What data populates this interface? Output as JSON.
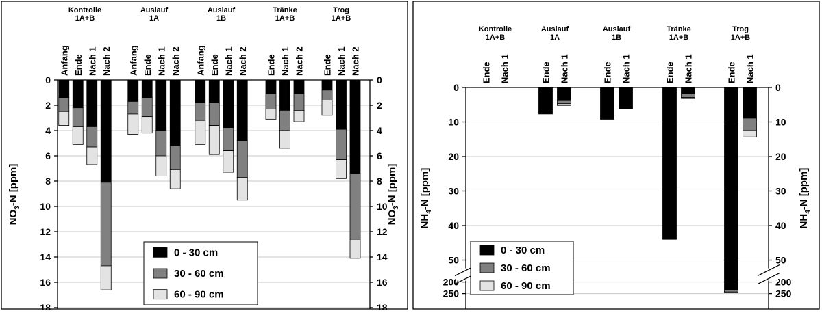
{
  "chart_data": [
    {
      "type": "bar",
      "stacked": true,
      "ylabel": "NO3-N [ppm]",
      "ylabel_parts": {
        "main": "NO",
        "sub": "3",
        "rest": "-N [ppm]"
      },
      "ylim": [
        0,
        18
      ],
      "yticks": [
        0,
        2,
        4,
        6,
        8,
        10,
        12,
        14,
        16,
        18
      ],
      "y_inverted": true,
      "grid": true,
      "legend_position": "bottom-center",
      "groups": [
        {
          "line1": "Kontrolle",
          "line2": "1A+B",
          "bars": [
            {
              "label": "Anfang",
              "values": [
                1.4,
                1.1,
                1.1
              ]
            },
            {
              "label": "Ende",
              "values": [
                2.2,
                1.5,
                1.4
              ]
            },
            {
              "label": "Nach 1",
              "values": [
                3.7,
                1.6,
                1.4
              ]
            },
            {
              "label": "Nach 2",
              "values": [
                8.1,
                6.6,
                1.9
              ]
            }
          ]
        },
        {
          "line1": "Auslauf",
          "line2": "1A",
          "bars": [
            {
              "label": "Anfang",
              "values": [
                1.7,
                1.0,
                1.6
              ]
            },
            {
              "label": "Ende",
              "values": [
                1.4,
                1.5,
                1.3
              ]
            },
            {
              "label": "Nach 1",
              "values": [
                4.0,
                2.0,
                1.6
              ]
            },
            {
              "label": "Nach 2",
              "values": [
                5.2,
                1.9,
                1.5
              ]
            }
          ]
        },
        {
          "line1": "Auslauf",
          "line2": "1B",
          "bars": [
            {
              "label": "Anfang",
              "values": [
                1.8,
                1.4,
                1.9
              ]
            },
            {
              "label": "Ende",
              "values": [
                1.8,
                1.8,
                2.3
              ]
            },
            {
              "label": "Nach 1",
              "values": [
                3.8,
                1.8,
                1.7
              ]
            },
            {
              "label": "Nach 2",
              "values": [
                4.8,
                2.9,
                1.8
              ]
            }
          ]
        },
        {
          "line1": "Tränke",
          "line2": "1A+B",
          "bars": [
            {
              "label": "Ende",
              "values": [
                1.1,
                1.2,
                0.8
              ]
            },
            {
              "label": "Nach 1",
              "values": [
                2.4,
                1.6,
                1.4
              ]
            },
            {
              "label": "Nach 2",
              "values": [
                1.1,
                1.3,
                0.9
              ]
            }
          ]
        },
        {
          "line1": "Trog",
          "line2": "1A+B",
          "bars": [
            {
              "label": "Ende",
              "values": [
                0.8,
                0.8,
                1.2
              ]
            },
            {
              "label": "Nach 1",
              "values": [
                3.9,
                2.4,
                1.5
              ]
            },
            {
              "label": "Nach 2",
              "values": [
                7.4,
                5.2,
                1.5
              ]
            }
          ]
        }
      ],
      "series": [
        {
          "name": "0 - 30 cm",
          "color": "#000000"
        },
        {
          "name": "30 - 60 cm",
          "color": "#808080"
        },
        {
          "name": "60 - 90 cm",
          "color": "#e3e3e3"
        }
      ]
    },
    {
      "type": "bar",
      "stacked": true,
      "ylabel": "NH4-N [ppm]",
      "ylabel_parts": {
        "main": "NH",
        "sub": "4",
        "rest": "-N [ppm]"
      },
      "ylim": [
        0,
        250
      ],
      "yticks": [
        0,
        10,
        20,
        30,
        40,
        50,
        200,
        250
      ],
      "y_inverted": true,
      "axis_break": [
        52,
        200
      ],
      "grid": true,
      "legend_position": "bottom-left",
      "groups": [
        {
          "line1": "Kontrolle",
          "line2": "1A+B",
          "bars": [
            {
              "label": "Ende",
              "values": [
                0,
                0,
                0
              ]
            },
            {
              "label": "Nach 1",
              "values": [
                0,
                0,
                0
              ]
            }
          ]
        },
        {
          "line1": "Auslauf",
          "line2": "1A",
          "bars": [
            {
              "label": "Ende",
              "values": [
                7.7,
                0,
                0
              ]
            },
            {
              "label": "Nach 1",
              "values": [
                3.8,
                0.9,
                0.5
              ]
            }
          ]
        },
        {
          "line1": "Auslauf",
          "line2": "1B",
          "bars": [
            {
              "label": "Ende",
              "values": [
                9.2,
                0,
                0
              ]
            },
            {
              "label": "Nach 1",
              "values": [
                6.2,
                0,
                0
              ]
            }
          ]
        },
        {
          "line1": "Tränke",
          "line2": "1A+B",
          "bars": [
            {
              "label": "Ende",
              "values": [
                44.0,
                0,
                0
              ]
            },
            {
              "label": "Nach 1",
              "values": [
                1.9,
                1.0,
                0.3
              ]
            }
          ]
        },
        {
          "line1": "Trog",
          "line2": "1A+B",
          "bars": [
            {
              "label": "Ende",
              "values": [
                235,
                8,
                4
              ]
            },
            {
              "label": "Nach 1",
              "values": [
                8.9,
                3.6,
                1.8
              ]
            }
          ]
        }
      ],
      "series": [
        {
          "name": "0 - 30 cm",
          "color": "#000000"
        },
        {
          "name": "30 - 60 cm",
          "color": "#808080"
        },
        {
          "name": "60 - 90 cm",
          "color": "#e3e3e3"
        }
      ]
    }
  ]
}
